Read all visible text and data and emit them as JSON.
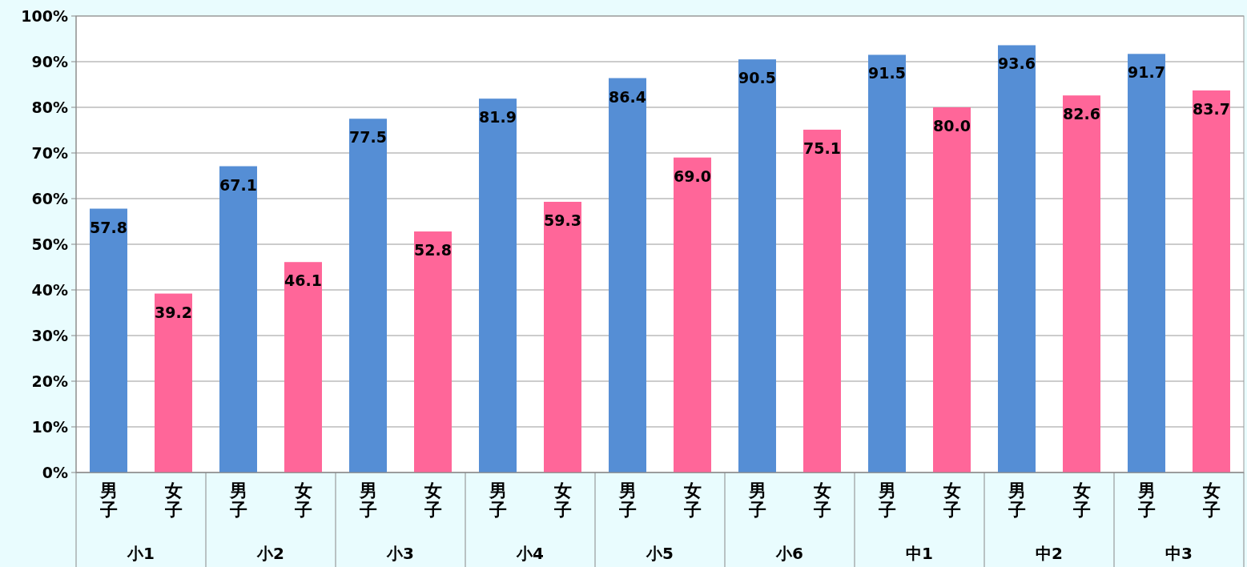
{
  "chart_data": {
    "type": "bar",
    "categories": [
      "小1",
      "小2",
      "小3",
      "小4",
      "小5",
      "小6",
      "中1",
      "中2",
      "中3"
    ],
    "series": [
      {
        "name": "男子",
        "color": "#558ed5",
        "values": [
          57.8,
          67.1,
          77.5,
          81.9,
          86.4,
          90.5,
          91.5,
          93.6,
          91.7
        ],
        "value_labels": [
          "57.8",
          "67.1",
          "77.5",
          "81.9",
          "86.4",
          "90.5",
          "91.5",
          "93.6",
          "91.7"
        ]
      },
      {
        "name": "女子",
        "color": "#ff6699",
        "values": [
          39.2,
          46.1,
          52.8,
          59.3,
          69.0,
          75.1,
          80.0,
          82.6,
          83.7
        ],
        "value_labels": [
          "39.2",
          "46.1",
          "52.8",
          "59.3",
          "69.0",
          "75.1",
          "80.0",
          "82.6",
          "83.7"
        ]
      }
    ],
    "ylim": [
      0,
      100
    ],
    "yticks": [
      {
        "value": 0,
        "label": "0%"
      },
      {
        "value": 10,
        "label": "10%"
      },
      {
        "value": 20,
        "label": "20%"
      },
      {
        "value": 30,
        "label": "30%"
      },
      {
        "value": 40,
        "label": "40%"
      },
      {
        "value": 50,
        "label": "50%"
      },
      {
        "value": 60,
        "label": "60%"
      },
      {
        "value": 70,
        "label": "70%"
      },
      {
        "value": 80,
        "label": "80%"
      },
      {
        "value": 90,
        "label": "90%"
      },
      {
        "value": 100,
        "label": "100%"
      }
    ],
    "grid": "y"
  }
}
